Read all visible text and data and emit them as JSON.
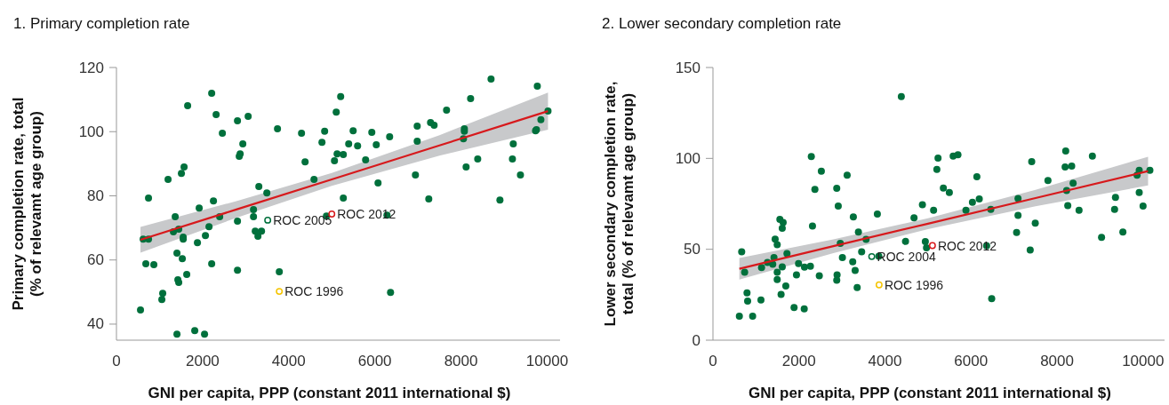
{
  "chart_data": [
    {
      "type": "scatter",
      "title": "1. Primary completion rate",
      "xlabel": "GNI per capita, PPP (constant 2011 international $)",
      "ylabel": "Primary completion rate, total\n(% of relevamt age group)",
      "xlim": [
        0,
        10300
      ],
      "ylim": [
        35,
        120
      ],
      "xticks": [
        0,
        2000,
        4000,
        6000,
        8000,
        10000
      ],
      "yticks": [
        40,
        60,
        80,
        100,
        120
      ],
      "series": [
        {
          "marker": "circle",
          "color": "#00703c",
          "x": [
            558,
            620,
            744,
            682,
            868,
            744,
            1054,
            1074,
            1198,
            1364,
            1322,
            1446,
            1550,
            1550,
            1405,
            1529,
            1426,
            1446,
            1632,
            1508,
            1570,
            1653,
            1405,
            1818,
            2045,
            1880,
            1921,
            2066,
            2149,
            2211,
            2252,
            2211,
            2314,
            2397,
            2459,
            2810,
            2851,
            2872,
            2934,
            2810,
            2810,
            3058,
            3182,
            3182,
            3223,
            3285,
            3368,
            3306,
            3492,
            3739,
            3781,
            4297,
            4380,
            4587,
            4772,
            4834,
            4876,
            5062,
            5103,
            5124,
            5206,
            5268,
            5496,
            5392,
            5599,
            5785,
            5929,
            6033,
            6343,
            6074,
            5268,
            6281,
            6983,
            6983,
            6942,
            7252,
            7293,
            7376,
            7665,
            6364,
            8223,
            8078,
            8078,
            8057,
            8119,
            8388,
            8698,
            8904,
            9214,
            9194,
            9380,
            9772,
            9855,
            9731,
            9752,
            10020
          ],
          "values": [
            44.4,
            66.5,
            66.5,
            58.8,
            58.5,
            79.3,
            47.7,
            49.6,
            85.1,
            73.5,
            68.8,
            69.6,
            67.1,
            66.5,
            62.1,
            60.4,
            53.8,
            53.0,
            55.5,
            87.0,
            89.0,
            108.1,
            36.9,
            38.0,
            36.9,
            65.4,
            76.2,
            67.6,
            70.4,
            58.8,
            78.4,
            112.0,
            105.3,
            73.5,
            99.5,
            103.4,
            92.3,
            93.1,
            96.2,
            72.1,
            56.8,
            104.8,
            75.7,
            73.5,
            69.0,
            67.4,
            69.0,
            82.9,
            80.9,
            100.9,
            56.3,
            99.5,
            90.6,
            85.1,
            96.7,
            100.1,
            73.7,
            90.9,
            106.1,
            93.1,
            110.9,
            92.9,
            100.3,
            96.2,
            95.6,
            91.2,
            99.8,
            95.9,
            98.4,
            84.0,
            79.3,
            74.0,
            101.7,
            97.0,
            86.5,
            79.0,
            102.8,
            102.0,
            106.7,
            49.9,
            110.3,
            100.9,
            100.1,
            97.8,
            89.0,
            91.5,
            116.4,
            78.7,
            96.2,
            91.5,
            86.5,
            114.2,
            103.7,
            100.3,
            100.6,
            106.4
          ]
        },
        {
          "type": "line",
          "color": "#d7191c",
          "x": [
            558,
            2800,
            5000,
            7500,
            10020
          ],
          "values": [
            66.3,
            75.8,
            85.1,
            95.7,
            106.4
          ],
          "lower": [
            62.3,
            73.2,
            83.1,
            92.5,
            100.6
          ],
          "upper": [
            70.3,
            78.4,
            87.1,
            98.9,
            112.2
          ]
        },
        {
          "marker": "circle",
          "name": "ROC 2005",
          "color": "#00703c",
          "x": [
            3512
          ],
          "values": [
            72.4
          ]
        },
        {
          "marker": "circle",
          "name": "ROC 1996",
          "color": "#f5c400",
          "x": [
            3781
          ],
          "values": [
            50.2
          ]
        },
        {
          "marker": "circle",
          "name": "ROC 2012",
          "color": "#d7191c",
          "x": [
            5000
          ],
          "values": [
            74.3
          ]
        }
      ]
    },
    {
      "type": "scatter",
      "title": "2. Lower secondary completion rate",
      "xlabel": "GNI per capita, PPP (constant 2011 international $)",
      "ylabel": "Lower secondary completion rate,\ntotal (% of relevamt age group)",
      "xlim": [
        0,
        10500
      ],
      "ylim": [
        0,
        150
      ],
      "xticks": [
        0,
        2000,
        4000,
        6000,
        8000,
        10000
      ],
      "yticks": [
        0,
        50,
        100,
        150
      ],
      "series": [
        {
          "marker": "circle",
          "color": "#00703c",
          "x": [
            614,
            923,
            668,
            737,
            792,
            806,
            1116,
            1130,
            1267,
            1390,
            1419,
            1494,
            1611,
            1494,
            1584,
            1694,
            1446,
            1494,
            1556,
            1632,
            1611,
            1721,
            1886,
            1942,
            1990,
            2122,
            2128,
            2266,
            2287,
            2314,
            2370,
            2473,
            2520,
            2878,
            2913,
            2886,
            2878,
            2961,
            3010,
            3120,
            3250,
            3306,
            3264,
            3382,
            3353,
            3457,
            3560,
            3822,
            3857,
            4477,
            4380,
            4675,
            4870,
            4938,
            4965,
            5130,
            5233,
            5206,
            5357,
            5496,
            5585,
            5696,
            5882,
            6033,
            6136,
            6192,
            6363,
            6460,
            6481,
            7060,
            7093,
            7093,
            7376,
            7411,
            7494,
            7789,
            8202,
            8188,
            8341,
            8374,
            8223,
            8250,
            8512,
            8822,
            9035,
            9359,
            9338,
            9531,
            9911,
            9861,
            9911,
            10000,
            10159
          ],
          "values": [
            13.2,
            13.2,
            48.6,
            37.4,
            26.0,
            21.5,
            22.1,
            40.0,
            42.8,
            41.8,
            45.5,
            33.3,
            40.3,
            37.4,
            25.2,
            29.8,
            55.6,
            52.5,
            66.4,
            64.7,
            61.6,
            47.6,
            17.9,
            35.9,
            42.1,
            17.2,
            40.2,
            40.7,
            101.0,
            62.8,
            83.0,
            35.4,
            92.9,
            83.5,
            73.8,
            35.9,
            33.0,
            53.2,
            45.4,
            90.8,
            43.1,
            38.4,
            67.8,
            59.5,
            28.9,
            48.6,
            55.4,
            69.4,
            46.2,
            54.3,
            134.0,
            67.3,
            74.5,
            54.2,
            50.8,
            71.5,
            100.2,
            93.9,
            83.7,
            81.2,
            101.3,
            102.0,
            71.5,
            75.9,
            89.9,
            77.7,
            51.9,
            72.0,
            22.8,
            59.3,
            68.6,
            77.9,
            49.6,
            98.2,
            64.4,
            87.8,
            104.1,
            95.3,
            95.8,
            86.4,
            82.3,
            74.0,
            71.5,
            101.3,
            56.6,
            78.6,
            72.0,
            59.5,
            93.5,
            90.8,
            81.2,
            73.8,
            93.4
          ]
        },
        {
          "type": "line",
          "color": "#d7191c",
          "x": [
            614,
            2800,
            5000,
            7500,
            10117
          ],
          "values": [
            39.3,
            51.7,
            64.1,
            78.2,
            93.0
          ],
          "lower": [
            33.4,
            47.9,
            61.1,
            73.7,
            85.1
          ],
          "upper": [
            45.2,
            55.5,
            67.1,
            82.7,
            100.9
          ]
        },
        {
          "marker": "circle",
          "name": "ROC 2004",
          "color": "#00703c",
          "x": [
            3692
          ],
          "values": [
            46.0
          ]
        },
        {
          "marker": "circle",
          "name": "ROC 1996",
          "color": "#f5c400",
          "x": [
            3863
          ],
          "values": [
            30.4
          ]
        },
        {
          "marker": "circle",
          "name": "ROC 2012",
          "color": "#d7191c",
          "x": [
            5103
          ],
          "values": [
            52.0
          ]
        }
      ]
    }
  ]
}
